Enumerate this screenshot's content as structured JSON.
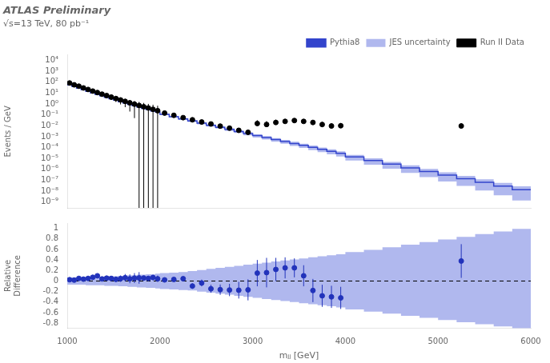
{
  "chart_data": [
    {
      "type": "line",
      "title": "ATLAS Preliminary",
      "subtitle": "√s=13 TeV, 80 pb⁻¹",
      "y_label": "Events / GeV",
      "log": "y",
      "xlim": [
        1000,
        6000
      ],
      "xticks": [
        1000,
        2000,
        3000,
        4000,
        5000,
        6000
      ],
      "ylim": [
        3e-10,
        30000.0
      ],
      "yticks": [
        {
          "value": 1e-09,
          "label": "10⁻⁹"
        },
        {
          "value": 1e-08,
          "label": "10⁻⁸"
        },
        {
          "value": 1e-07,
          "label": "10⁻⁷"
        },
        {
          "value": 1e-06,
          "label": "10⁻⁶"
        },
        {
          "value": 1e-05,
          "label": "10⁻⁵"
        },
        {
          "value": 0.0001,
          "label": "10⁻⁴"
        },
        {
          "value": 0.001,
          "label": "10⁻³"
        },
        {
          "value": 0.01,
          "label": "10⁻²"
        },
        {
          "value": 0.1,
          "label": "10⁻¹"
        },
        {
          "value": 1,
          "label": "10⁰"
        },
        {
          "value": 10,
          "label": "10¹"
        },
        {
          "value": 100,
          "label": "10²"
        },
        {
          "value": 1000,
          "label": "10³"
        },
        {
          "value": 10000,
          "label": "10⁴"
        }
      ],
      "grid": false,
      "legend": "upper right",
      "tick_labels": "y",
      "series": [
        {
          "name": "Pythia8",
          "type": "step",
          "color": "#3344cc",
          "x": [
            1000,
            1050,
            1100,
            1150,
            1200,
            1250,
            1300,
            1350,
            1400,
            1450,
            1500,
            1550,
            1600,
            1650,
            1700,
            1750,
            1800,
            1850,
            1900,
            1950,
            2000,
            2100,
            2200,
            2300,
            2400,
            2500,
            2600,
            2700,
            2800,
            2900,
            3000,
            3100,
            3200,
            3300,
            3400,
            3500,
            3600,
            3700,
            3800,
            3900,
            4000,
            4200,
            4400,
            4600,
            4800,
            5000,
            5200,
            5400,
            5600,
            5800,
            6000
          ],
          "values": [
            80,
            55,
            40,
            28,
            20,
            14,
            10,
            7.5,
            5.5,
            4.0,
            3.0,
            2.2,
            1.6,
            1.2,
            0.9,
            0.68,
            0.52,
            0.4,
            0.3,
            0.23,
            0.18,
            0.11,
            0.068,
            0.042,
            0.027,
            0.017,
            0.011,
            0.0072,
            0.0046,
            0.003,
            0.0019,
            0.00125,
            0.00082,
            0.00054,
            0.00036,
            0.00024,
            0.00016,
            0.000105,
            7e-05,
            4.6e-05,
            3e-05,
            1.4e-05,
            6.5e-06,
            3e-06,
            1.4e-06,
            6.5e-07,
            3e-07,
            1.4e-07,
            6.5e-08,
            3e-08,
            1.4e-08
          ]
        },
        {
          "name": "JES uncertainty",
          "type": "band",
          "color": "#b0b8ee",
          "x": [
            1000,
            1050,
            1100,
            1150,
            1200,
            1250,
            1300,
            1350,
            1400,
            1450,
            1500,
            1550,
            1600,
            1650,
            1700,
            1750,
            1800,
            1850,
            1900,
            1950,
            2000,
            2100,
            2200,
            2300,
            2400,
            2500,
            2600,
            2700,
            2800,
            2900,
            3000,
            3100,
            3200,
            3300,
            3400,
            3500,
            3600,
            3700,
            3800,
            3900,
            4000,
            4200,
            4400,
            4600,
            4800,
            5000,
            5200,
            5400,
            5600,
            5800,
            6000
          ],
          "lower": [
            74.4,
            51.15,
            37.2,
            26.04,
            18.6,
            12.88,
            9.2,
            6.9,
            5.06,
            3.64,
            2.73,
            2.002,
            1.44,
            1.08,
            0.801,
            0.6052,
            0.4576,
            0.352,
            0.261,
            0.2001,
            0.1548,
            0.0935,
            0.05712,
            0.03486,
            0.02214,
            0.0136,
            0.00858,
            0.005472,
            0.003404,
            0.00216,
            0.00133,
            0.00085,
            0.0005412,
            0.0003456,
            0.0002232,
            0.000144,
            9.28e-05,
            5.88e-05,
            3.78e-05,
            2.392e-05,
            1.5e-05,
            6.44e-06,
            2.73e-06,
            1.14e-06,
            4.76e-07,
            1.95e-07,
            7.8e-08,
            3.08e-08,
            1.17e-08,
            4.2e-09,
            1.4e-09
          ],
          "upper": [
            85.6,
            58.85,
            42.8,
            29.96,
            21.4,
            15.12,
            10.8,
            8.1,
            5.94,
            4.36,
            3.27,
            2.398,
            1.76,
            1.32,
            0.999,
            0.7548,
            0.5824,
            0.448,
            0.339,
            0.2599,
            0.2052,
            0.1265,
            0.07888,
            0.04914,
            0.03213,
            0.02057,
            0.01353,
            0.009,
            0.005842,
            0.00387,
            0.002489,
            0.0016625,
            0.001107,
            0.0007398,
            0.0005004,
            0.0003384,
            0.0002288,
            0.00015225,
            0.0001029,
            6.854e-05,
            4.53e-05,
            2.17e-05,
            1.0335e-05,
            4.92e-06,
            2.366e-06,
            1.131e-06,
            5.37e-07,
            2.576e-07,
            1.2285e-07,
            5.82e-08,
            2.786e-08
          ]
        },
        {
          "name": "Run II Data",
          "type": "scatter",
          "color": "black",
          "marker": "circle",
          "x": [
            1025,
            1075,
            1125,
            1175,
            1225,
            1275,
            1325,
            1375,
            1425,
            1475,
            1525,
            1575,
            1625,
            1675,
            1725,
            1775,
            1825,
            1875,
            1925,
            1975,
            2050,
            2150,
            2250,
            2350,
            2450,
            2550,
            2650,
            2750,
            2850,
            2950,
            3050,
            3150,
            3250,
            3350,
            3450,
            3550,
            3650,
            3750,
            3850,
            3950,
            5250
          ],
          "values": [
            82,
            56,
            42,
            29,
            21,
            15,
            11,
            7.8,
            5.8,
            4.2,
            3.1,
            2.3,
            1.7,
            1.25,
            0.95,
            0.72,
            0.55,
            0.42,
            0.32,
            0.24,
            0.145,
            0.09,
            0.055,
            0.035,
            0.022,
            0.0145,
            0.0092,
            0.006,
            0.0038,
            0.0025,
            0.016,
            0.013,
            0.02,
            0.025,
            0.03,
            0.025,
            0.02,
            0.013,
            0.0095,
            0.01,
            0.0095
          ],
          "error_low": [
            9,
            7,
            6,
            5,
            4,
            3.5,
            3,
            2.5,
            2.2,
            1.9,
            1.6,
            1.4,
            1.2,
            1.05,
            0.9,
            0.8,
            0.68,
            0.58,
            0.52,
            0.44,
            0.022,
            0.014,
            0.009,
            0.006,
            0.0042,
            0.003,
            0.0022,
            0.0017,
            0.0014,
            0.0011,
            0.004,
            0.0036,
            0.0044,
            0.005,
            0.0055,
            0.005,
            0.0044,
            0.0036,
            0.0031,
            0.0032,
            0.0031
          ],
          "error_high": [
            9,
            7,
            6,
            5,
            4,
            3.5,
            3,
            2.5,
            2.2,
            1.9,
            1.6,
            1.4,
            1.2,
            1.05,
            0.9,
            0.8,
            0.68,
            0.58,
            0.52,
            0.44,
            0.026,
            0.017,
            0.011,
            0.0073,
            0.0052,
            0.0038,
            0.0029,
            0.0023,
            0.0018,
            0.0014,
            0.016,
            0.013,
            0.016,
            0.016,
            0.016,
            0.014,
            0.012,
            0.0095,
            0.0071,
            0.0075,
            0.0075
          ]
        }
      ]
    },
    {
      "type": "scatter",
      "x_label": "mⱼⱼ [GeV]",
      "y_label": "Relative\nDifference",
      "xlim": [
        1000,
        6000
      ],
      "xticks": [
        1000,
        2000,
        3000,
        4000,
        5000,
        6000
      ],
      "ylim": [
        -0.9,
        1.1
      ],
      "yticks": [
        -0.8,
        -0.6,
        -0.4,
        -0.2,
        0,
        0.2,
        0.4,
        0.6,
        0.8,
        1.0
      ],
      "grid": false,
      "hline": 0,
      "series": [
        {
          "type": "band",
          "color": "#b0b8ee",
          "x": [
            1000,
            1050,
            1100,
            1150,
            1200,
            1250,
            1300,
            1350,
            1400,
            1450,
            1500,
            1550,
            1600,
            1650,
            1700,
            1750,
            1800,
            1850,
            1900,
            1950,
            2000,
            2100,
            2200,
            2300,
            2400,
            2500,
            2600,
            2700,
            2800,
            2900,
            3000,
            3100,
            3200,
            3300,
            3400,
            3500,
            3600,
            3700,
            3800,
            3900,
            4000,
            4200,
            4400,
            4600,
            4800,
            5000,
            5200,
            5400,
            5600,
            5800,
            6000
          ],
          "lower": [
            -0.07,
            -0.07,
            -0.07,
            -0.07,
            -0.07,
            -0.08,
            -0.08,
            -0.08,
            -0.08,
            -0.09,
            -0.09,
            -0.09,
            -0.1,
            -0.1,
            -0.11,
            -0.11,
            -0.12,
            -0.12,
            -0.13,
            -0.13,
            -0.14,
            -0.15,
            -0.16,
            -0.17,
            -0.18,
            -0.2,
            -0.22,
            -0.24,
            -0.26,
            -0.28,
            -0.3,
            -0.32,
            -0.34,
            -0.36,
            -0.38,
            -0.4,
            -0.42,
            -0.44,
            -0.46,
            -0.48,
            -0.5,
            -0.54,
            -0.58,
            -0.62,
            -0.66,
            -0.7,
            -0.74,
            -0.78,
            -0.82,
            -0.86,
            -0.9
          ],
          "upper": [
            0.07,
            0.07,
            0.07,
            0.07,
            0.07,
            0.08,
            0.08,
            0.08,
            0.08,
            0.09,
            0.09,
            0.09,
            0.1,
            0.1,
            0.11,
            0.11,
            0.12,
            0.12,
            0.13,
            0.13,
            0.14,
            0.15,
            0.16,
            0.17,
            0.19,
            0.21,
            0.23,
            0.25,
            0.27,
            0.29,
            0.31,
            0.33,
            0.35,
            0.37,
            0.39,
            0.41,
            0.43,
            0.45,
            0.47,
            0.49,
            0.51,
            0.55,
            0.59,
            0.64,
            0.69,
            0.74,
            0.79,
            0.84,
            0.89,
            0.94,
            0.99
          ]
        },
        {
          "type": "scatter",
          "color": "#2233bb",
          "marker": "circle",
          "x": [
            1025,
            1075,
            1125,
            1175,
            1225,
            1275,
            1325,
            1375,
            1425,
            1475,
            1525,
            1575,
            1625,
            1675,
            1725,
            1775,
            1825,
            1875,
            1925,
            1975,
            2050,
            2150,
            2250,
            2350,
            2450,
            2550,
            2650,
            2750,
            2850,
            2950,
            3050,
            3150,
            3250,
            3350,
            3450,
            3550,
            3650,
            3750,
            3850,
            3950,
            5250
          ],
          "values": [
            0.025,
            0.018,
            0.05,
            0.036,
            0.05,
            0.071,
            0.1,
            0.04,
            0.055,
            0.05,
            0.033,
            0.045,
            0.063,
            0.042,
            0.056,
            0.059,
            0.058,
            0.05,
            0.067,
            0.043,
            0.022,
            0.03,
            0.044,
            -0.095,
            -0.037,
            -0.147,
            -0.163,
            -0.17,
            -0.174,
            -0.167,
            0.15,
            0.16,
            0.22,
            0.25,
            0.25,
            0.1,
            -0.18,
            -0.28,
            -0.3,
            -0.32,
            0.38
          ],
          "error_low": [
            0.011,
            0.013,
            0.014,
            0.017,
            0.019,
            0.023,
            0.027,
            0.032,
            0.038,
            0.045,
            0.052,
            0.061,
            0.071,
            0.084,
            0.095,
            0.11,
            0.04,
            0.04,
            0.05,
            0.06,
            0.024,
            0.03,
            0.04,
            0.051,
            0.063,
            0.076,
            0.098,
            0.117,
            0.158,
            0.2,
            0.25,
            0.28,
            0.22,
            0.2,
            0.18,
            0.2,
            0.22,
            0.21,
            0.21,
            0.21,
            0.32
          ],
          "error_high": [
            0.011,
            0.013,
            0.014,
            0.017,
            0.019,
            0.023,
            0.027,
            0.032,
            0.038,
            0.045,
            0.052,
            0.061,
            0.071,
            0.084,
            0.095,
            0.11,
            0.04,
            0.04,
            0.05,
            0.06,
            0.024,
            0.03,
            0.04,
            0.051,
            0.063,
            0.076,
            0.098,
            0.117,
            0.158,
            0.2,
            0.25,
            0.28,
            0.22,
            0.2,
            0.18,
            0.2,
            0.22,
            0.21,
            0.21,
            0.21,
            0.32
          ]
        }
      ]
    }
  ]
}
